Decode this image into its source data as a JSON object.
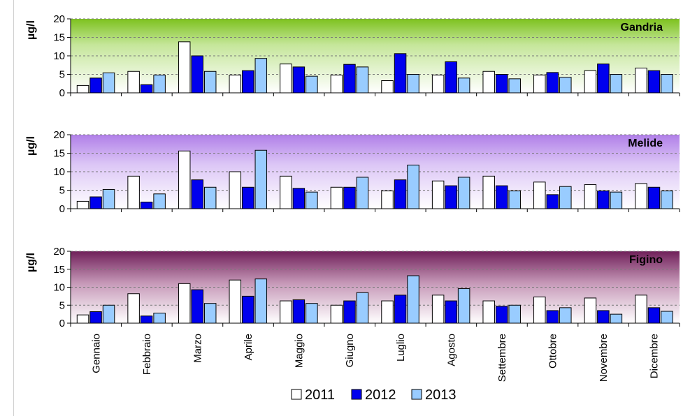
{
  "colors": {
    "s2011": "#ffffff",
    "s2012": "#0000ee",
    "s2013": "#99ccff",
    "gandria_top": "#7dc21e",
    "melide_top": "#b07fe8",
    "figino_top": "#70205a"
  },
  "chart_data": [
    {
      "type": "bar",
      "title": "Gandria",
      "ylabel": "µg/l",
      "ylim": [
        0,
        20
      ],
      "yticks": [
        0,
        5,
        10,
        15,
        20
      ],
      "grid": true,
      "categories": [
        "Gennaio",
        "Febbraio",
        "Marzo",
        "Aprile",
        "Maggio",
        "Giugno",
        "Luglio",
        "Agosto",
        "Settembre",
        "Ottobre",
        "Novembre",
        "Dicembre"
      ],
      "series": [
        {
          "name": "2011",
          "values": [
            2.0,
            5.8,
            13.8,
            4.8,
            7.8,
            4.8,
            3.3,
            4.8,
            5.8,
            4.8,
            6.0,
            6.7
          ]
        },
        {
          "name": "2012",
          "values": [
            4.0,
            2.2,
            10.0,
            6.0,
            7.0,
            7.7,
            10.6,
            8.4,
            5.0,
            5.5,
            7.8,
            6.0
          ]
        },
        {
          "name": "2013",
          "values": [
            5.4,
            4.8,
            5.8,
            9.3,
            4.5,
            7.0,
            5.0,
            4.0,
            3.8,
            4.2,
            5.0,
            5.0
          ]
        }
      ]
    },
    {
      "type": "bar",
      "title": "Melide",
      "ylabel": "µg/l",
      "ylim": [
        0,
        20
      ],
      "yticks": [
        0,
        5,
        10,
        15,
        20
      ],
      "grid": true,
      "categories": [
        "Gennaio",
        "Febbraio",
        "Marzo",
        "Aprile",
        "Maggio",
        "Giugno",
        "Luglio",
        "Agosto",
        "Settembre",
        "Ottobre",
        "Novembre",
        "Dicembre"
      ],
      "series": [
        {
          "name": "2011",
          "values": [
            2.0,
            8.8,
            15.6,
            10.0,
            8.8,
            5.8,
            4.8,
            7.5,
            8.8,
            7.2,
            6.5,
            6.8
          ]
        },
        {
          "name": "2012",
          "values": [
            3.2,
            1.8,
            7.8,
            5.8,
            5.5,
            5.8,
            7.8,
            6.2,
            6.2,
            3.8,
            4.8,
            5.8
          ]
        },
        {
          "name": "2013",
          "values": [
            5.2,
            4.0,
            5.8,
            15.8,
            4.5,
            8.5,
            11.8,
            8.5,
            4.8,
            6.0,
            4.5,
            4.8
          ]
        }
      ]
    },
    {
      "type": "bar",
      "title": "Figino",
      "ylabel": "µg/l",
      "ylim": [
        0,
        20
      ],
      "yticks": [
        0,
        5,
        10,
        15,
        20
      ],
      "grid": true,
      "categories": [
        "Gennaio",
        "Febbraio",
        "Marzo",
        "Aprile",
        "Maggio",
        "Giugno",
        "Luglio",
        "Agosto",
        "Settembre",
        "Ottobre",
        "Novembre",
        "Dicembre"
      ],
      "series": [
        {
          "name": "2011",
          "values": [
            2.3,
            8.2,
            11.0,
            12.0,
            6.2,
            5.0,
            6.2,
            7.8,
            6.2,
            7.3,
            7.0,
            7.8
          ]
        },
        {
          "name": "2012",
          "values": [
            3.2,
            2.0,
            9.3,
            7.5,
            6.5,
            6.2,
            7.8,
            6.2,
            4.7,
            3.5,
            3.5,
            4.3
          ]
        },
        {
          "name": "2013",
          "values": [
            5.0,
            2.8,
            5.5,
            12.3,
            5.5,
            8.5,
            13.2,
            9.6,
            5.0,
            4.3,
            2.5,
            3.3
          ]
        }
      ]
    }
  ],
  "legend": {
    "items": [
      {
        "label": "2011",
        "color": "#ffffff"
      },
      {
        "label": "2012",
        "color": "#0000ee"
      },
      {
        "label": "2013",
        "color": "#99ccff"
      }
    ],
    "position": "bottom-center"
  }
}
